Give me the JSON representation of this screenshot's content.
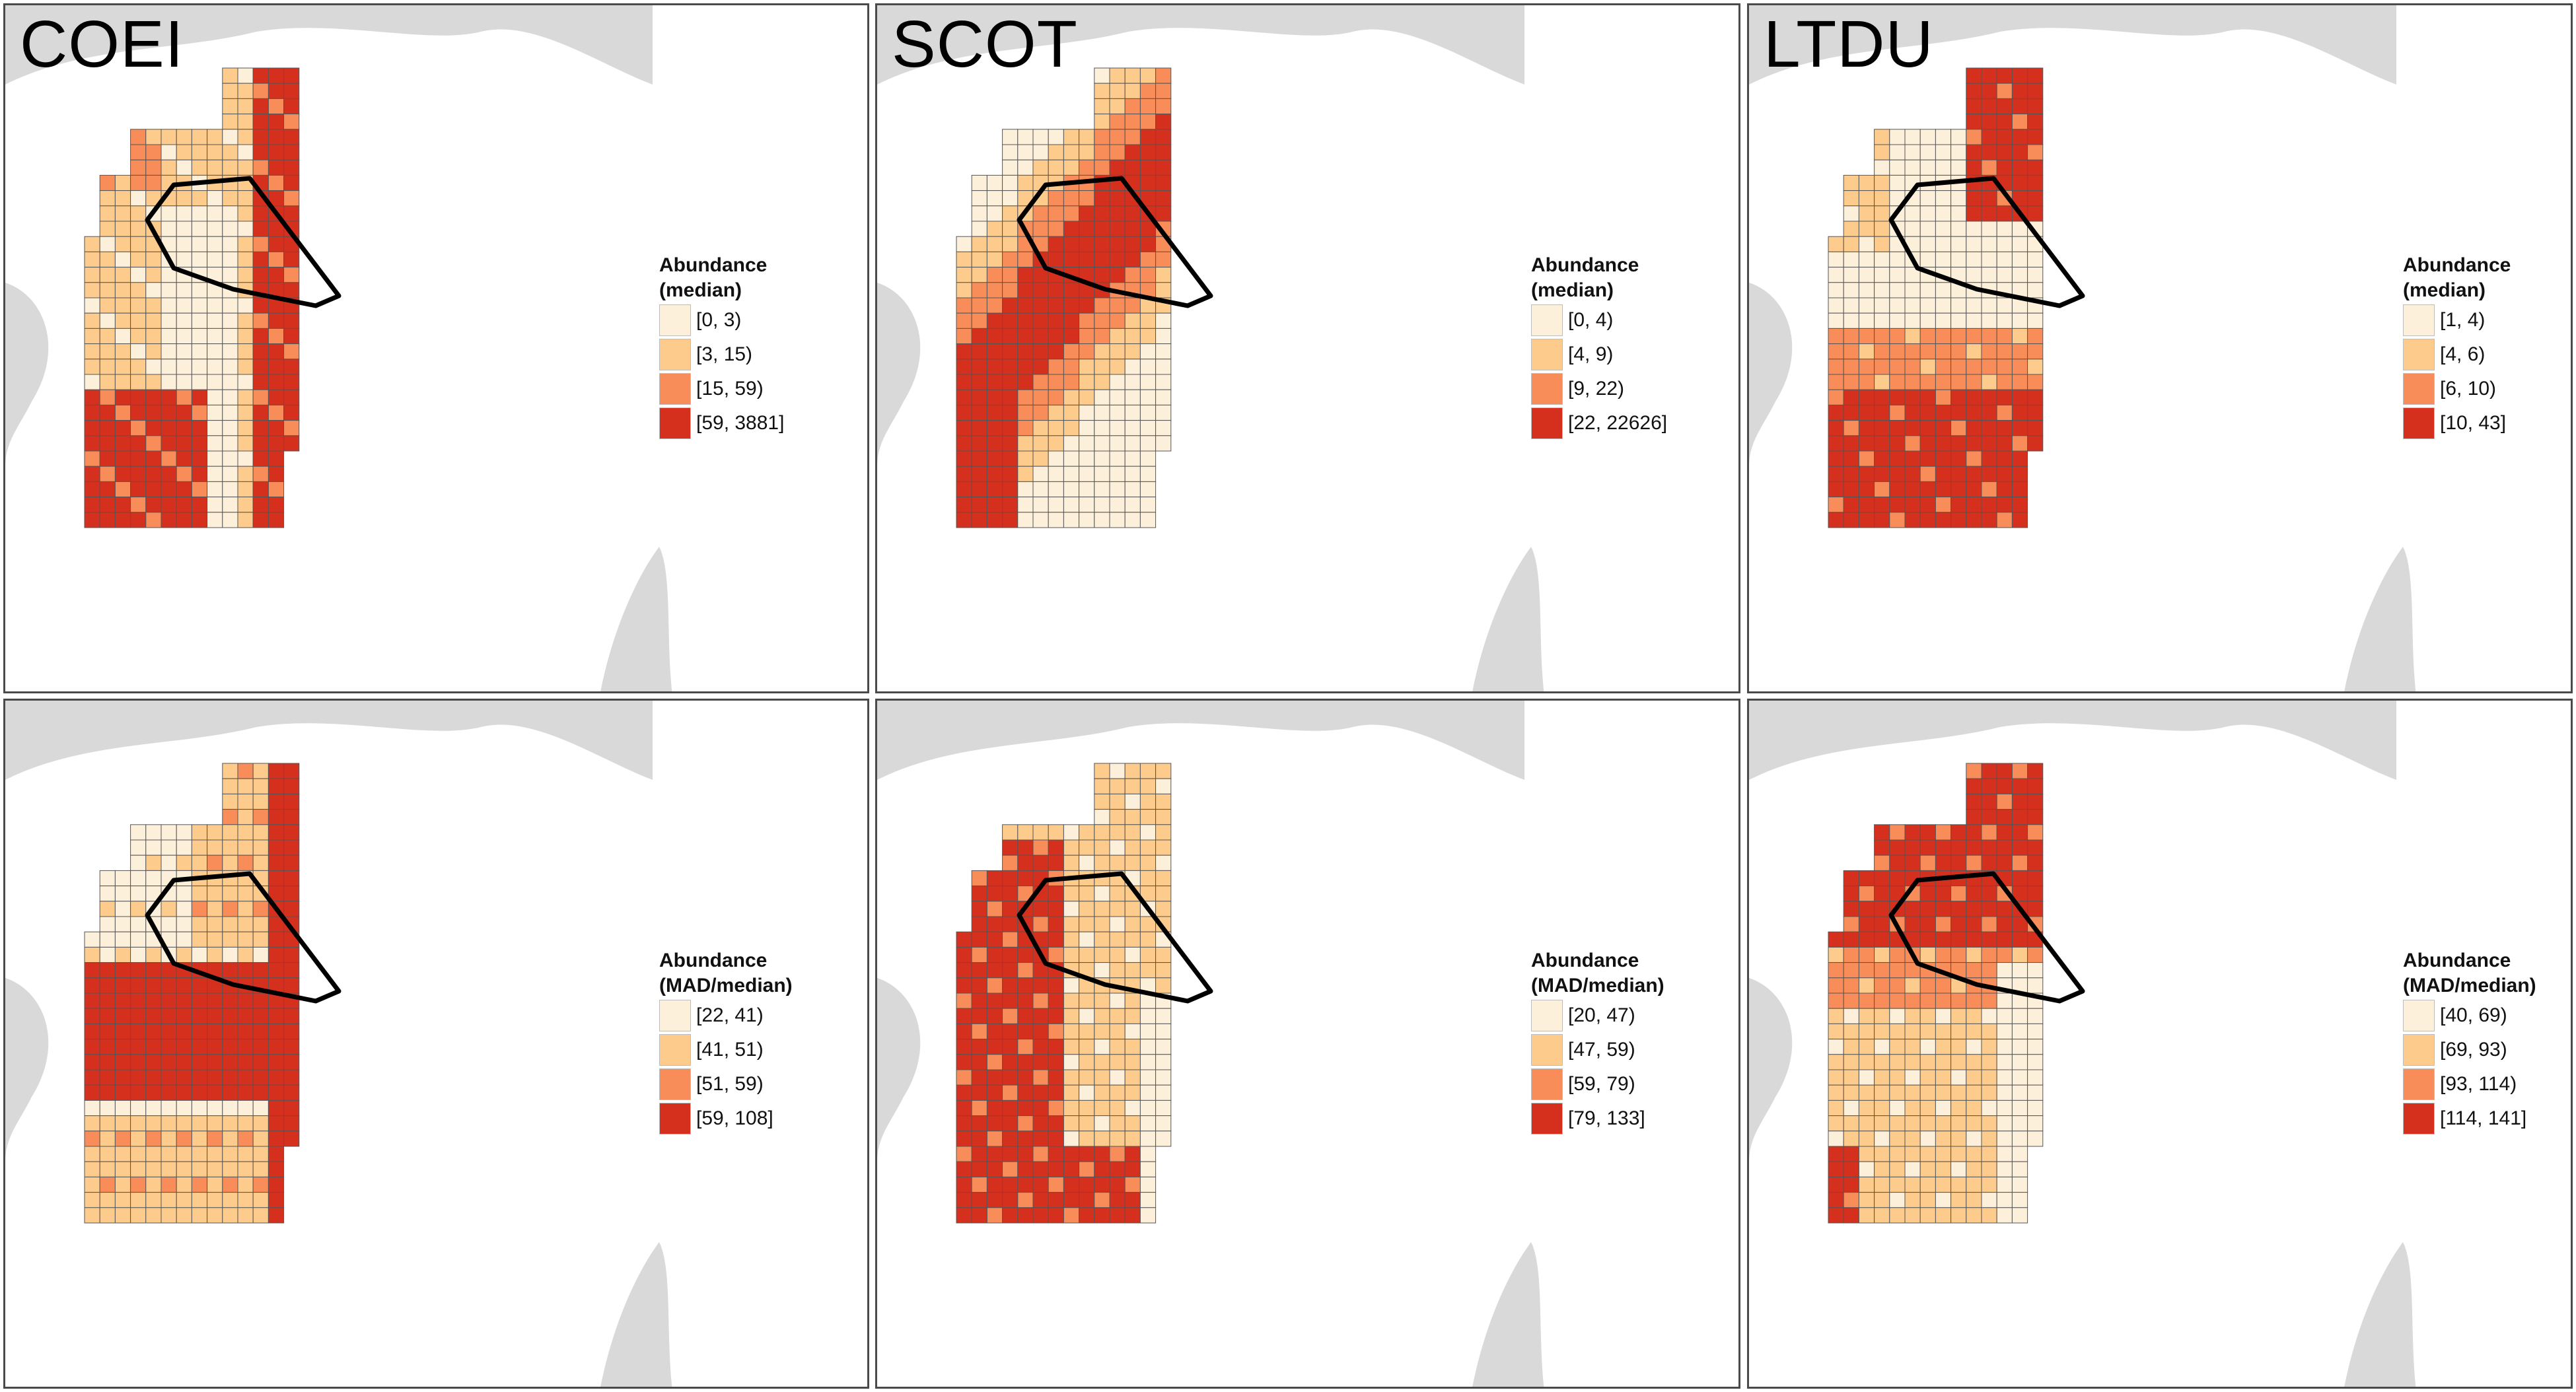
{
  "colors": {
    "c0": "#fdf0db",
    "c1": "#fdcb8b",
    "c2": "#f88d5a",
    "c3": "#d52f1e",
    "land": "#d9d9d9",
    "water": "#ffffff"
  },
  "panels": [
    {
      "species": "COEI",
      "metric": "median",
      "legend_title_1": "Abundance",
      "legend_title_2": "(median)",
      "legend": [
        "[0, 3)",
        "[3, 15)",
        "[15, 59)",
        "[59, 3881]"
      ]
    },
    {
      "species": "SCOT",
      "metric": "median",
      "legend_title_1": "Abundance",
      "legend_title_2": "(median)",
      "legend": [
        "[0, 4)",
        "[4, 9)",
        "[9, 22)",
        "[22, 22626]"
      ]
    },
    {
      "species": "LTDU",
      "metric": "median",
      "legend_title_1": "Abundance",
      "legend_title_2": "(median)",
      "legend": [
        "[1, 4)",
        "[4, 6)",
        "[6, 10)",
        "[10, 43]"
      ]
    },
    {
      "species": "",
      "metric": "mad",
      "legend_title_1": "Abundance",
      "legend_title_2": "(MAD/median)",
      "legend": [
        "[22, 41)",
        "[41, 51)",
        "[51, 59)",
        "[59, 108]"
      ]
    },
    {
      "species": "",
      "metric": "mad",
      "legend_title_1": "Abundance",
      "legend_title_2": "(MAD/median)",
      "legend": [
        "[20, 47)",
        "[47, 59)",
        "[59, 79)",
        "[79, 133]"
      ]
    },
    {
      "species": "",
      "metric": "mad",
      "legend_title_1": "Abundance",
      "legend_title_2": "(MAD/median)",
      "legend": [
        "[40, 69)",
        "[69, 93)",
        "[93, 114)",
        "[114, 141]"
      ]
    }
  ]
}
